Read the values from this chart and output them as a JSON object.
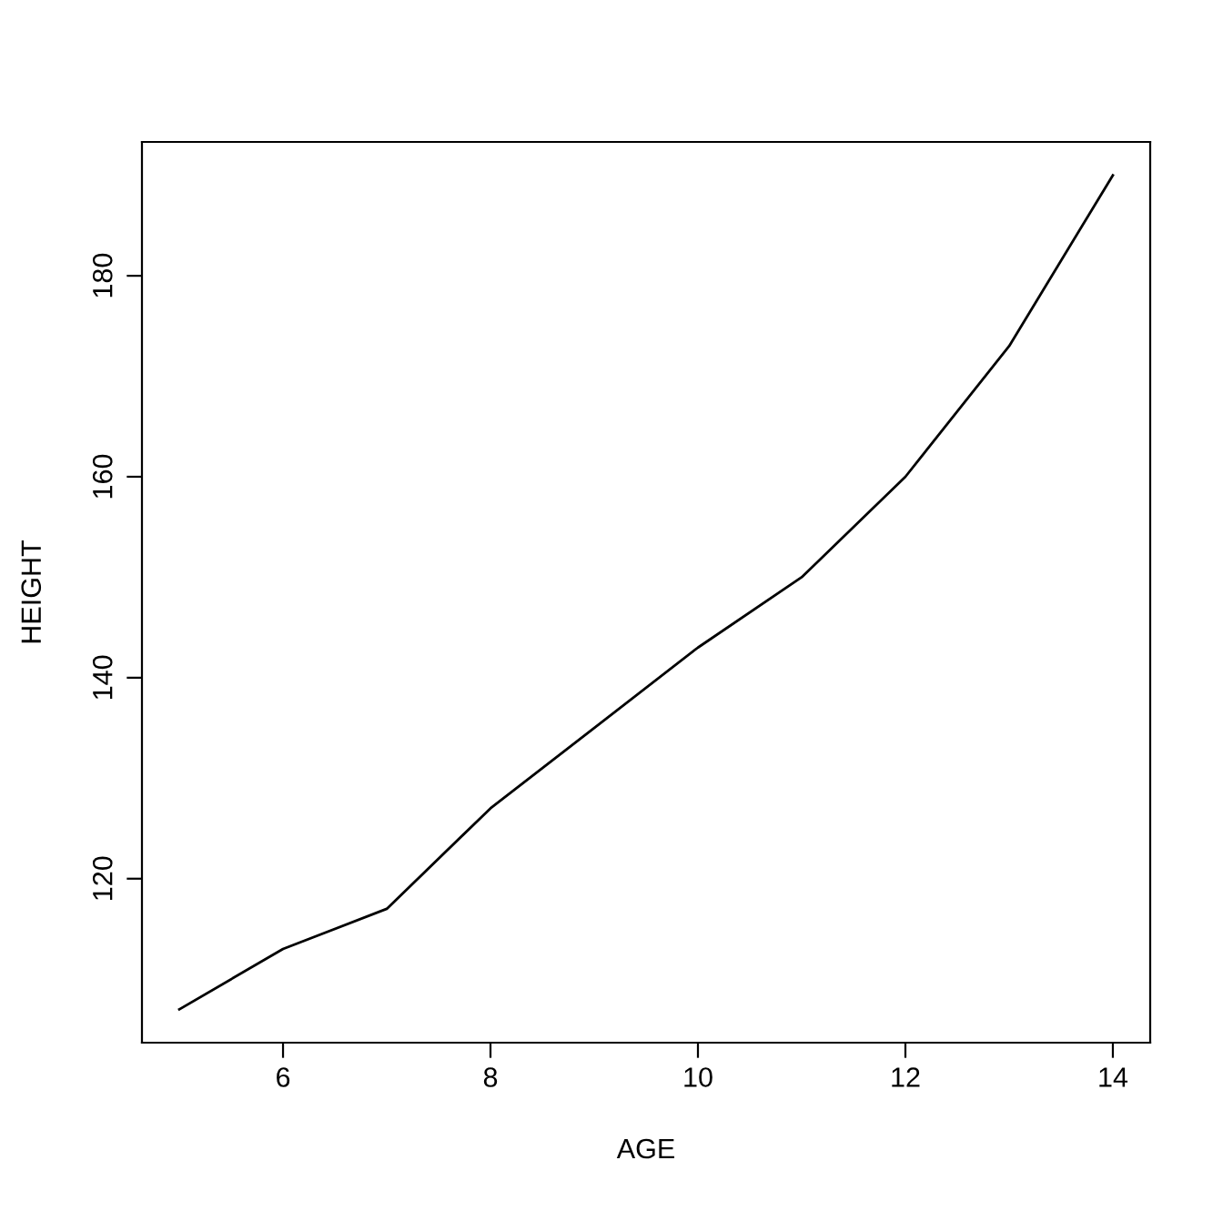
{
  "chart_data": {
    "type": "line",
    "xlabel": "AGE",
    "ylabel": "HEIGHT",
    "x": [
      5,
      6,
      7,
      8,
      9,
      10,
      11,
      12,
      13,
      14
    ],
    "series": [
      {
        "color": "#000000",
        "values": [
          107,
          113,
          117,
          127,
          135,
          143,
          150,
          160,
          173,
          190
        ]
      }
    ],
    "xlim": [
      4.64,
      14.36
    ],
    "ylim": [
      103.68,
      193.32
    ],
    "xticks": [
      6,
      8,
      10,
      12,
      14
    ],
    "yticks": [
      120,
      140,
      160,
      180
    ],
    "grid": false,
    "legend": false,
    "marker": "none",
    "line_style": "solid"
  }
}
